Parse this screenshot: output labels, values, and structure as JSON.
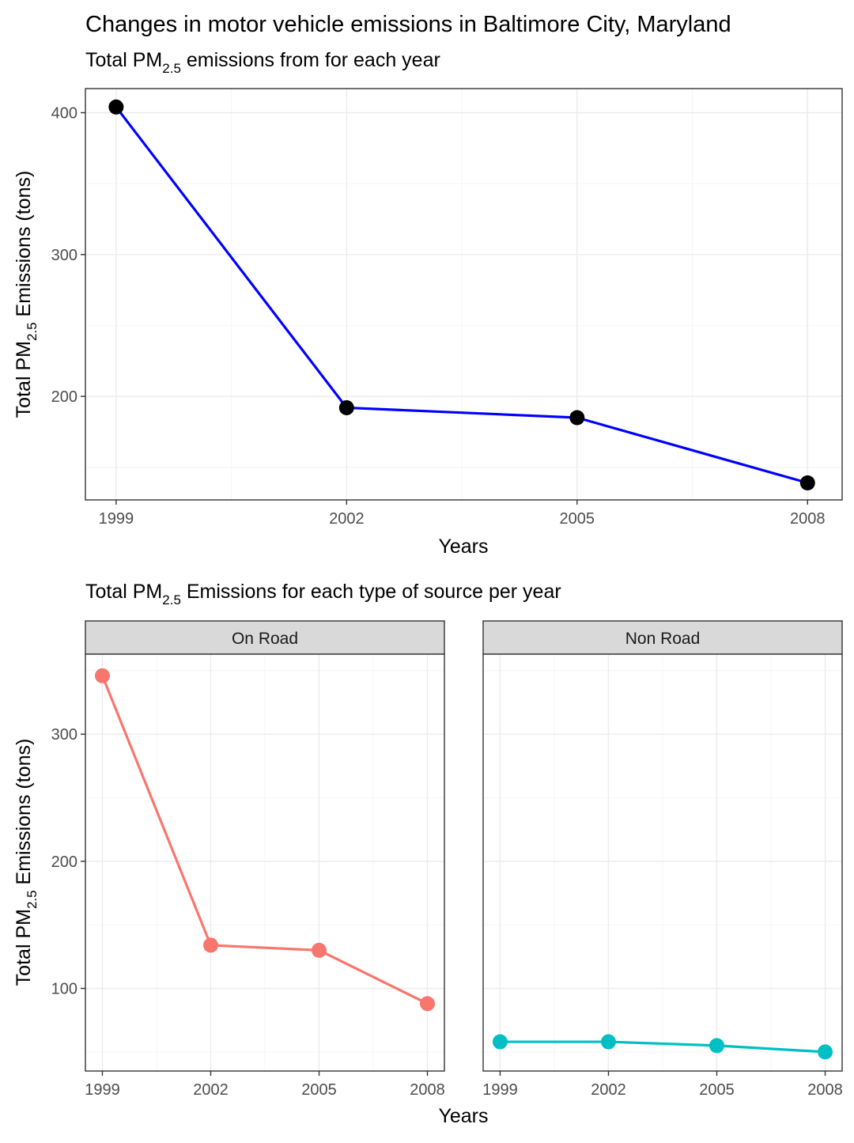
{
  "title": "Changes in motor vehicle emissions in Baltimore City, Maryland",
  "chart_data": [
    {
      "type": "line",
      "subtitle": {
        "pre": "Total PM",
        "sub": "2.5",
        "post": " emissions from for each year"
      },
      "xlabel": "Years",
      "ylabel": {
        "pre": "Total PM",
        "sub": "2.5",
        "post": " Emissions (tons)"
      },
      "x": [
        1999,
        2002,
        2005,
        2008
      ],
      "series": [
        {
          "values": [
            404,
            192,
            185,
            139
          ],
          "line_color": "#0000ff",
          "point_color": "#000000"
        }
      ],
      "xticks": [
        "1999",
        "2002",
        "2005",
        "2008"
      ],
      "yticks": [
        200,
        300,
        400
      ],
      "xlim": [
        1998.6,
        2008.45
      ],
      "ylim": [
        127,
        417
      ],
      "grid": true
    },
    {
      "type": "line",
      "subtitle": {
        "pre": "Total PM",
        "sub": "2.5",
        "post": " Emissions for each type of source per year"
      },
      "xlabel": "Years",
      "ylabel": {
        "pre": "Total PM",
        "sub": "2.5",
        "post": " Emissions (tons)"
      },
      "x": [
        1999,
        2002,
        2005,
        2008
      ],
      "facets": [
        {
          "label": "On Road",
          "values": [
            346,
            134,
            130,
            88
          ],
          "color": "#f8766d"
        },
        {
          "label": "Non Road",
          "values": [
            58,
            58,
            55,
            50
          ],
          "color": "#00bfc4"
        }
      ],
      "xticks": [
        "1999",
        "2002",
        "2005",
        "2008"
      ],
      "yticks": [
        100,
        200,
        300
      ],
      "xlim": [
        1998.53,
        2008.47
      ],
      "ylim": [
        35,
        363
      ],
      "grid": true
    }
  ]
}
